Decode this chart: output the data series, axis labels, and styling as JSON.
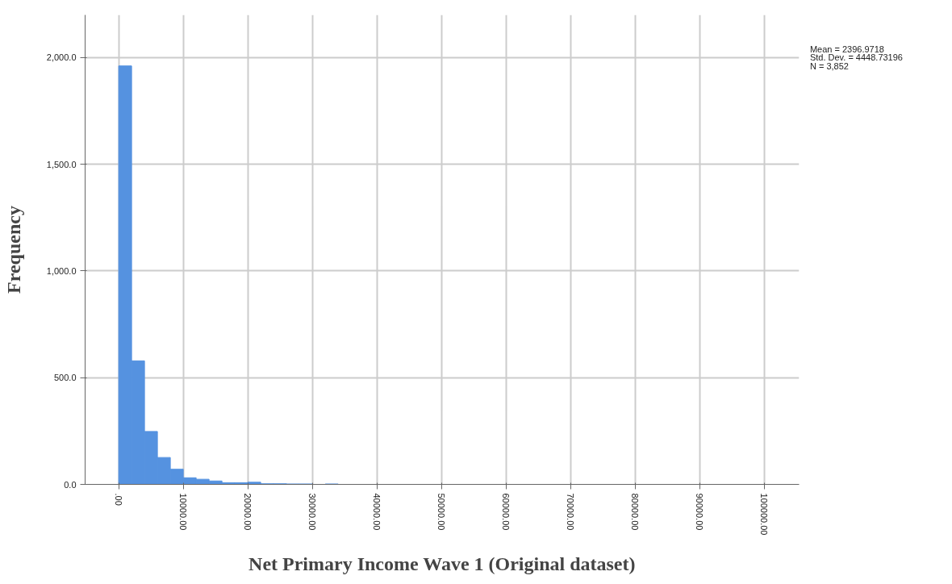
{
  "chart_data": {
    "type": "histogram",
    "xlabel": "Net Primary Income Wave 1 (Original dataset)",
    "ylabel": "Frequency",
    "bins": [
      0,
      2000,
      4000,
      6000,
      8000,
      10000,
      12000,
      14000,
      16000,
      18000,
      20000,
      22000,
      24000,
      26000,
      28000,
      30000,
      32000,
      34000,
      36000,
      38000,
      40000,
      42000,
      44000,
      46000,
      48000,
      50000,
      52000,
      54000,
      56000,
      58000,
      60000,
      62000,
      64000,
      66000,
      68000,
      70000,
      72000,
      74000,
      76000,
      78000,
      80000,
      82000,
      84000,
      86000,
      88000,
      90000,
      92000,
      94000,
      96000,
      98000,
      100000
    ],
    "values": [
      1961,
      579,
      248,
      126,
      71,
      31,
      24,
      16,
      8,
      8,
      10,
      3,
      3,
      2,
      2,
      null,
      2,
      null,
      null,
      0,
      null,
      null,
      0,
      0,
      0,
      0,
      0,
      0,
      0,
      0,
      0,
      0,
      0,
      0,
      0,
      0,
      0,
      0,
      0,
      0,
      0,
      0,
      0,
      0,
      0,
      0,
      0,
      0,
      0,
      0
    ],
    "color": "#5592e0",
    "xlim": [
      -5200,
      105400
    ],
    "ylim": [
      0,
      2200
    ],
    "xticks": [
      {
        "value": 0,
        "label": ".00"
      },
      {
        "value": 10000,
        "label": "10000.00"
      },
      {
        "value": 20000,
        "label": "20000.00"
      },
      {
        "value": 30000,
        "label": "30000.00"
      },
      {
        "value": 40000,
        "label": "40000.00"
      },
      {
        "value": 50000,
        "label": "50000.00"
      },
      {
        "value": 60000,
        "label": "60000.00"
      },
      {
        "value": 70000,
        "label": "70000.00"
      },
      {
        "value": 80000,
        "label": "80000.00"
      },
      {
        "value": 90000,
        "label": "90000.00"
      },
      {
        "value": 100000,
        "label": "100000.00"
      }
    ],
    "yticks": [
      {
        "value": 0,
        "label": "0.0"
      },
      {
        "value": 500,
        "label": "500.0"
      },
      {
        "value": 1000,
        "label": "1,000.0"
      },
      {
        "value": 1500,
        "label": "1,500.0"
      },
      {
        "value": 2000,
        "label": "2,000.0"
      }
    ],
    "grid": true,
    "annotations": [
      "Mean = 2396.9718",
      "Std. Dev. = 4448.73196",
      "N = 3,852"
    ]
  }
}
